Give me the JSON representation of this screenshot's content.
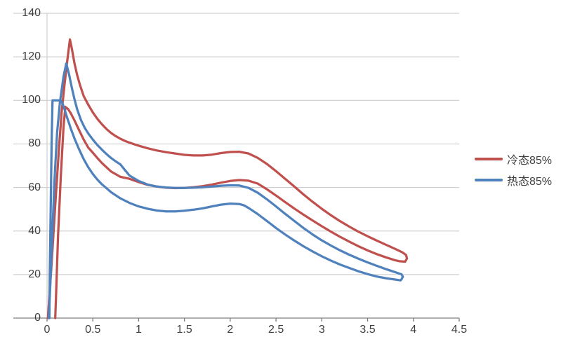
{
  "chart_data": {
    "type": "line",
    "title": "",
    "xlabel": "",
    "ylabel": "",
    "xlim": [
      0,
      4.5
    ],
    "ylim": [
      0,
      140
    ],
    "x_ticks": [
      "0",
      "0.5",
      "1",
      "1.5",
      "2",
      "2.5",
      "3",
      "3.5",
      "4",
      "4.5"
    ],
    "x_tick_values": [
      0,
      0.5,
      1,
      1.5,
      2,
      2.5,
      3,
      3.5,
      4,
      4.5
    ],
    "y_ticks": [
      "0",
      "20",
      "40",
      "60",
      "80",
      "100",
      "120",
      "140"
    ],
    "y_tick_values": [
      0,
      20,
      40,
      60,
      80,
      100,
      120,
      140
    ],
    "grid": "horizontal",
    "grid_color": "#c6c6c6",
    "axis_color": "#7f7f7f",
    "label_color": "#3f3f3f",
    "background": "#ffffff",
    "legend_position": "right",
    "series": [
      {
        "name": "冷态85%",
        "color": "#C0504D",
        "line_width": 3.25,
        "points": [
          [
            0.01,
            0
          ],
          [
            0.05,
            25
          ],
          [
            0.09,
            52
          ],
          [
            0.13,
            78
          ],
          [
            0.16,
            95
          ],
          [
            0.19,
            107
          ],
          [
            0.22,
            118
          ],
          [
            0.25,
            128
          ],
          [
            0.27,
            124
          ],
          [
            0.3,
            117
          ],
          [
            0.33,
            111.5
          ],
          [
            0.36,
            107
          ],
          [
            0.4,
            102
          ],
          [
            0.45,
            98
          ],
          [
            0.5,
            94.5
          ],
          [
            0.55,
            91.5
          ],
          [
            0.6,
            89
          ],
          [
            0.65,
            86.8
          ],
          [
            0.7,
            85
          ],
          [
            0.75,
            83.6
          ],
          [
            0.8,
            82.4
          ],
          [
            0.85,
            81.4
          ],
          [
            0.9,
            80.6
          ],
          [
            0.95,
            79.9
          ],
          [
            1.0,
            79.2
          ],
          [
            1.1,
            78
          ],
          [
            1.2,
            77
          ],
          [
            1.3,
            76.2
          ],
          [
            1.4,
            75.6
          ],
          [
            1.5,
            75
          ],
          [
            1.6,
            74.7
          ],
          [
            1.7,
            74.7
          ],
          [
            1.8,
            75.1
          ],
          [
            1.9,
            75.8
          ],
          [
            2.0,
            76.3
          ],
          [
            2.1,
            76.4
          ],
          [
            2.2,
            75.6
          ],
          [
            2.3,
            73.6
          ],
          [
            2.4,
            70.8
          ],
          [
            2.5,
            67.5
          ],
          [
            2.6,
            64
          ],
          [
            2.7,
            60.4
          ],
          [
            2.8,
            56.8
          ],
          [
            2.9,
            53.4
          ],
          [
            3.0,
            50.2
          ],
          [
            3.1,
            47.2
          ],
          [
            3.2,
            44.5
          ],
          [
            3.3,
            42
          ],
          [
            3.4,
            39.7
          ],
          [
            3.5,
            37.6
          ],
          [
            3.6,
            35.6
          ],
          [
            3.7,
            33.7
          ],
          [
            3.8,
            31.8
          ],
          [
            3.88,
            30.2
          ],
          [
            3.92,
            29
          ],
          [
            3.93,
            27.4
          ],
          [
            3.91,
            25.9
          ],
          [
            3.85,
            26.1
          ],
          [
            3.8,
            26.6
          ],
          [
            3.7,
            27.9
          ],
          [
            3.6,
            29.4
          ],
          [
            3.5,
            31.1
          ],
          [
            3.4,
            33
          ],
          [
            3.3,
            35.1
          ],
          [
            3.2,
            37.3
          ],
          [
            3.1,
            39.7
          ],
          [
            3.0,
            42.2
          ],
          [
            2.9,
            44.8
          ],
          [
            2.8,
            47.5
          ],
          [
            2.7,
            50.3
          ],
          [
            2.6,
            53.3
          ],
          [
            2.5,
            56.3
          ],
          [
            2.4,
            59.2
          ],
          [
            2.3,
            61.8
          ],
          [
            2.2,
            63.1
          ],
          [
            2.1,
            63.4
          ],
          [
            2.0,
            63
          ],
          [
            1.9,
            62.2
          ],
          [
            1.8,
            61.3
          ],
          [
            1.7,
            60.6
          ],
          [
            1.6,
            60.1
          ],
          [
            1.5,
            59.8
          ],
          [
            1.4,
            59.7
          ],
          [
            1.3,
            59.9
          ],
          [
            1.2,
            60.4
          ],
          [
            1.1,
            61.2
          ],
          [
            1.0,
            62.5
          ],
          [
            0.9,
            64
          ],
          [
            0.8,
            64.9
          ],
          [
            0.7,
            67.3
          ],
          [
            0.6,
            71.2
          ],
          [
            0.55,
            73.5
          ],
          [
            0.5,
            76
          ],
          [
            0.45,
            78.3
          ],
          [
            0.4,
            82
          ],
          [
            0.35,
            86.3
          ],
          [
            0.3,
            90.8
          ],
          [
            0.26,
            94
          ],
          [
            0.23,
            96
          ],
          [
            0.2,
            97
          ],
          [
            0.18,
            88
          ],
          [
            0.15,
            65
          ],
          [
            0.12,
            38
          ],
          [
            0.1,
            12
          ],
          [
            0.09,
            0
          ]
        ]
      },
      {
        "name": "热态85%",
        "color": "#4F81BD",
        "line_width": 3.25,
        "points": [
          [
            0.02,
            0
          ],
          [
            0.05,
            30
          ],
          [
            0.08,
            62
          ],
          [
            0.11,
            85
          ],
          [
            0.14,
            99
          ],
          [
            0.16,
            105
          ],
          [
            0.18,
            111
          ],
          [
            0.21,
            117
          ],
          [
            0.24,
            112
          ],
          [
            0.27,
            106
          ],
          [
            0.3,
            100.5
          ],
          [
            0.33,
            95.8
          ],
          [
            0.37,
            91
          ],
          [
            0.41,
            87.5
          ],
          [
            0.45,
            84.8
          ],
          [
            0.5,
            82
          ],
          [
            0.55,
            79.5
          ],
          [
            0.6,
            77.3
          ],
          [
            0.65,
            75.3
          ],
          [
            0.7,
            73.5
          ],
          [
            0.75,
            72
          ],
          [
            0.8,
            70.6
          ],
          [
            0.85,
            68
          ],
          [
            0.9,
            65.5
          ],
          [
            1.0,
            63
          ],
          [
            1.1,
            61.3
          ],
          [
            1.2,
            60.4
          ],
          [
            1.3,
            60
          ],
          [
            1.4,
            59.8
          ],
          [
            1.5,
            59.8
          ],
          [
            1.6,
            59.9
          ],
          [
            1.7,
            60.1
          ],
          [
            1.8,
            60.4
          ],
          [
            1.9,
            60.8
          ],
          [
            2.0,
            61
          ],
          [
            2.1,
            60.9
          ],
          [
            2.2,
            59.8
          ],
          [
            2.3,
            57.6
          ],
          [
            2.4,
            54.6
          ],
          [
            2.5,
            51.3
          ],
          [
            2.6,
            47.9
          ],
          [
            2.7,
            44.6
          ],
          [
            2.8,
            41.4
          ],
          [
            2.9,
            38.4
          ],
          [
            3.0,
            35.7
          ],
          [
            3.1,
            33.3
          ],
          [
            3.2,
            31.1
          ],
          [
            3.3,
            29.1
          ],
          [
            3.4,
            27.3
          ],
          [
            3.5,
            25.6
          ],
          [
            3.6,
            24
          ],
          [
            3.7,
            22.5
          ],
          [
            3.8,
            21.1
          ],
          [
            3.87,
            20.1
          ],
          [
            3.885,
            19
          ],
          [
            3.87,
            17.8
          ],
          [
            3.86,
            17.3
          ],
          [
            3.8,
            17.7
          ],
          [
            3.7,
            18.3
          ],
          [
            3.6,
            19.1
          ],
          [
            3.5,
            20.2
          ],
          [
            3.4,
            21.5
          ],
          [
            3.3,
            23
          ],
          [
            3.2,
            24.6
          ],
          [
            3.1,
            26.4
          ],
          [
            3.0,
            28.4
          ],
          [
            2.9,
            30.6
          ],
          [
            2.8,
            33
          ],
          [
            2.7,
            35.6
          ],
          [
            2.6,
            38.4
          ],
          [
            2.5,
            41.4
          ],
          [
            2.4,
            44.6
          ],
          [
            2.3,
            47.8
          ],
          [
            2.2,
            50.6
          ],
          [
            2.15,
            51.8
          ],
          [
            2.1,
            52.4
          ],
          [
            2.0,
            52.6
          ],
          [
            1.9,
            52.1
          ],
          [
            1.8,
            51.3
          ],
          [
            1.7,
            50.4
          ],
          [
            1.6,
            49.8
          ],
          [
            1.5,
            49.3
          ],
          [
            1.4,
            49
          ],
          [
            1.3,
            49
          ],
          [
            1.2,
            49.4
          ],
          [
            1.1,
            50.2
          ],
          [
            1.0,
            51.3
          ],
          [
            0.9,
            52.9
          ],
          [
            0.8,
            55
          ],
          [
            0.7,
            57.8
          ],
          [
            0.6,
            61.4
          ],
          [
            0.55,
            63.6
          ],
          [
            0.5,
            66.2
          ],
          [
            0.45,
            69.3
          ],
          [
            0.4,
            73
          ],
          [
            0.35,
            77.5
          ],
          [
            0.3,
            82.5
          ],
          [
            0.26,
            87
          ],
          [
            0.22,
            92
          ],
          [
            0.19,
            96
          ],
          [
            0.17,
            98.5
          ],
          [
            0.15,
            100
          ],
          [
            0.06,
            100
          ],
          [
            0.05,
            80
          ],
          [
            0.04,
            50
          ],
          [
            0.03,
            20
          ],
          [
            0.025,
            0
          ]
        ]
      }
    ]
  },
  "legend": {
    "items": [
      {
        "label": "冷态85%"
      },
      {
        "label": "热态85%"
      }
    ]
  }
}
